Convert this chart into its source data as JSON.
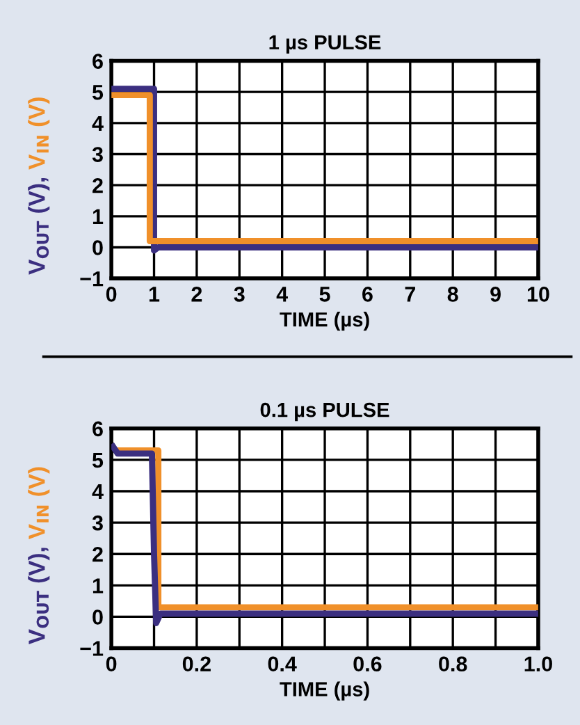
{
  "chart_data": [
    {
      "type": "line",
      "title": "1 µs PULSE",
      "xlabel": "TIME (µs)",
      "xlim": [
        0,
        10
      ],
      "ylim": [
        -1,
        6
      ],
      "xticks": [
        0,
        1,
        2,
        3,
        4,
        5,
        6,
        7,
        8,
        9,
        10
      ],
      "yticks": [
        {
          "value": -1,
          "label": "−1"
        },
        0,
        1,
        2,
        3,
        4,
        5,
        6
      ],
      "grid": true,
      "legend": false,
      "line_style": "solid",
      "marker": "none",
      "series": [
        {
          "name": "V$_{OUT}$ (V),",
          "color": "#3b2f80",
          "x": [
            0,
            1,
            1,
            1.1,
            10
          ],
          "values": [
            5.1,
            5.1,
            -0.1,
            0,
            0
          ]
        },
        {
          "name": "V$_{IN}$ (V)",
          "color": "#f0902a",
          "x": [
            0,
            0.9,
            0.9,
            1.1,
            10
          ],
          "values": [
            4.9,
            4.9,
            0.2,
            0.2,
            0.2
          ]
        }
      ]
    },
    {
      "type": "line",
      "title": "0.1 µs PULSE",
      "xlabel": "TIME (µs)",
      "xlim": [
        0,
        1
      ],
      "ylim": [
        -1,
        6
      ],
      "xticks": [
        0,
        {
          "value": 0.1,
          "label": null
        },
        0.2,
        {
          "value": 0.3,
          "label": null
        },
        0.4,
        {
          "value": 0.5,
          "label": null
        },
        0.6,
        {
          "value": 0.7,
          "label": null
        },
        0.8,
        {
          "value": 0.9,
          "label": null
        },
        {
          "value": 1,
          "label": "1.0"
        }
      ],
      "yticks": [
        {
          "value": -1,
          "label": "−1"
        },
        0,
        1,
        2,
        3,
        4,
        5,
        6
      ],
      "grid": true,
      "legend": false,
      "line_style": "solid",
      "marker": "none",
      "series": [
        {
          "name": "V$_{IN}$ (V)",
          "color": "#f0902a",
          "x": [
            0.01,
            0.11,
            0.11,
            1
          ],
          "values": [
            5.3,
            5.3,
            0.3,
            0.3
          ]
        },
        {
          "name": "V$_{OUT}$ (V),",
          "color": "#3b2f80",
          "x": [
            0,
            0.015,
            0.095,
            0.1,
            0.105,
            0.115,
            1
          ],
          "values": [
            5.5,
            5.2,
            5.2,
            2,
            -0.2,
            0.1,
            0.1
          ]
        }
      ]
    }
  ]
}
